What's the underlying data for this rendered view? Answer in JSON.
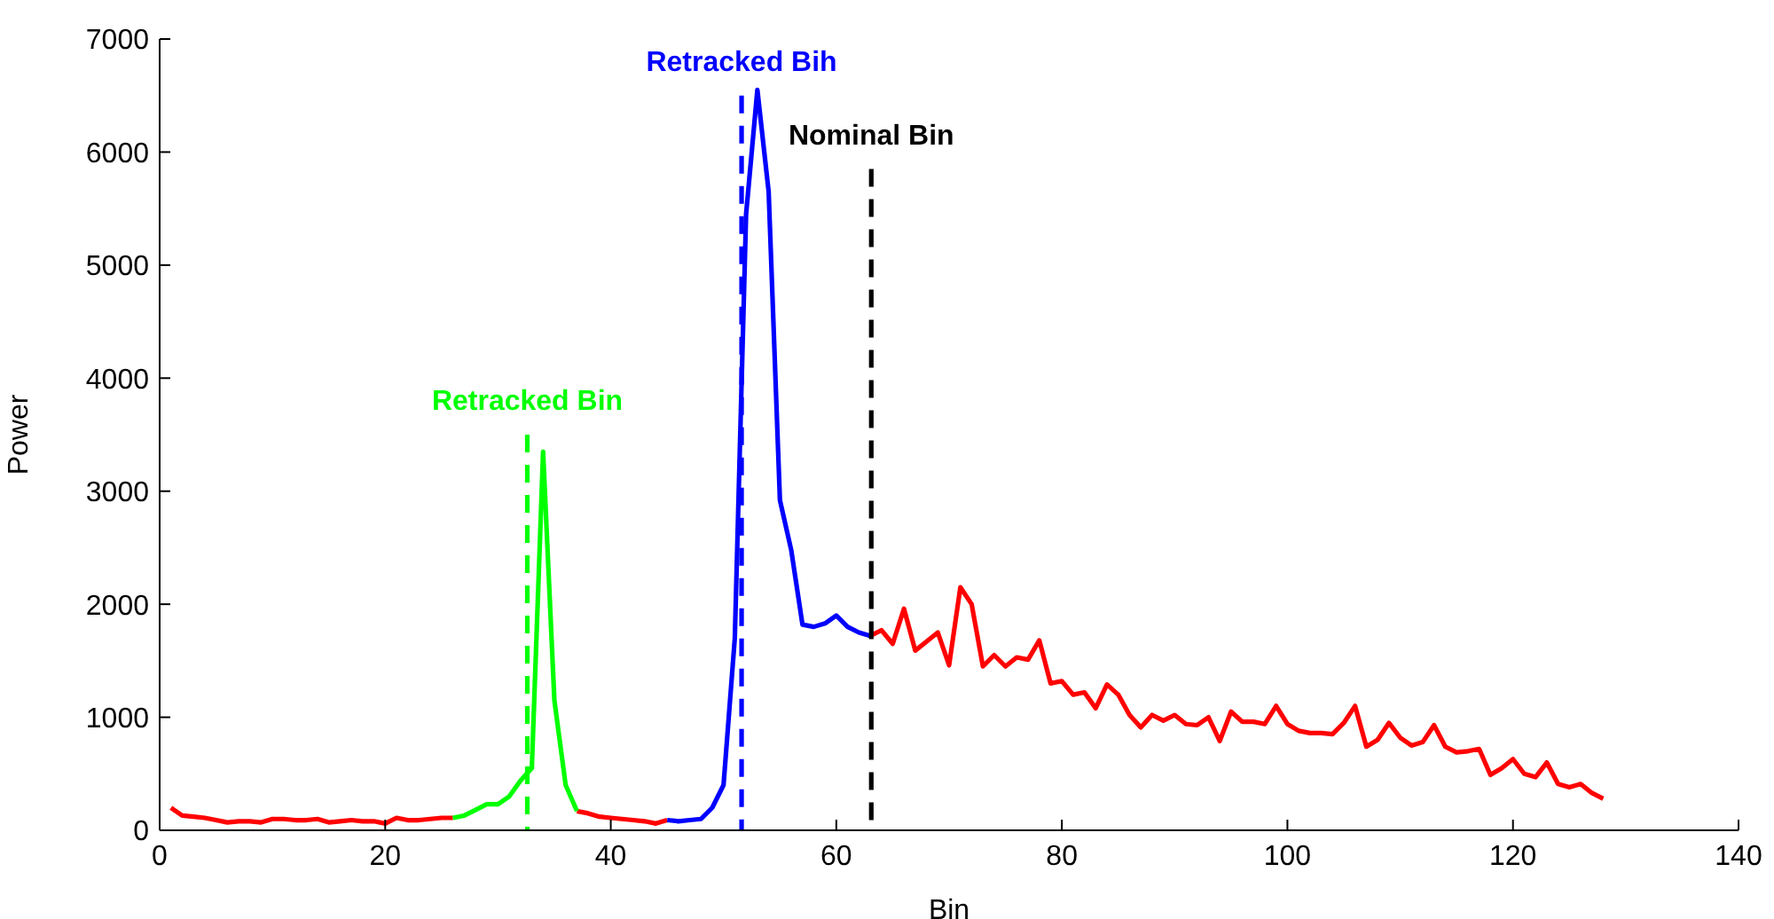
{
  "chart_data": {
    "type": "line",
    "xlabel": "Bin",
    "ylabel": "Power",
    "xlim": [
      0,
      140
    ],
    "xticks": [
      0,
      20,
      40,
      60,
      80,
      100,
      120,
      140
    ],
    "ylim": [
      0,
      7000
    ],
    "yticks": [
      0,
      1000,
      2000,
      3000,
      4000,
      5000,
      6000,
      7000
    ],
    "marker": "none",
    "annotations": [
      "Retracked  Bin",
      "Retracked  Bih",
      "Nominal  Bin"
    ],
    "series": [
      {
        "color": "#ff0000",
        "line_style": "solid",
        "x": [
          1,
          2,
          3,
          4,
          5,
          6,
          7,
          8,
          9,
          10,
          11,
          12,
          13,
          14,
          15,
          16,
          17,
          18,
          19,
          20,
          21,
          22,
          23,
          24,
          25,
          26,
          27,
          28,
          29,
          30,
          31,
          32,
          33,
          34,
          35,
          36,
          37,
          38,
          39,
          40,
          41,
          42,
          43,
          44,
          45,
          46,
          47,
          48,
          49,
          50,
          51,
          52,
          53,
          54,
          55,
          56,
          57,
          58,
          59,
          60,
          61,
          62,
          63,
          64,
          65,
          66,
          67,
          68,
          69,
          70,
          71,
          72,
          73,
          74,
          75,
          76,
          77,
          78,
          79,
          80,
          81,
          82,
          83,
          84,
          85,
          86,
          87,
          88,
          89,
          90,
          91,
          92,
          93,
          94,
          95,
          96,
          97,
          98,
          99,
          100,
          101,
          102,
          103,
          104,
          105,
          106,
          107,
          108,
          109,
          110,
          111,
          112,
          113,
          114,
          115,
          116,
          117,
          118,
          119,
          120,
          121,
          122,
          123,
          124,
          125,
          126,
          127,
          128
        ],
        "values": [
          200,
          130,
          120,
          110,
          90,
          70,
          80,
          80,
          70,
          100,
          100,
          90,
          90,
          100,
          70,
          80,
          90,
          80,
          80,
          60,
          110,
          90,
          90,
          100,
          110,
          110,
          null,
          null,
          null,
          null,
          null,
          null,
          null,
          null,
          null,
          null,
          170,
          150,
          120,
          110,
          100,
          90,
          80,
          60,
          90,
          null,
          null,
          null,
          null,
          null,
          null,
          null,
          null,
          null,
          null,
          null,
          null,
          null,
          null,
          null,
          null,
          null,
          1720,
          1770,
          1650,
          1960,
          1590,
          1670,
          1750,
          1460,
          2150,
          2000,
          1450,
          1550,
          1450,
          1530,
          1510,
          1680,
          1300,
          1320,
          1200,
          1220,
          1080,
          1290,
          1200,
          1020,
          910,
          1020,
          970,
          1020,
          940,
          930,
          1000,
          790,
          1050,
          960,
          960,
          940,
          1100,
          940,
          880,
          860,
          860,
          850,
          950,
          1100,
          740,
          800,
          950,
          820,
          750,
          780,
          930,
          740,
          690,
          700,
          720,
          490,
          550,
          630,
          500,
          470,
          600,
          410,
          380,
          410,
          330,
          280
        ]
      },
      {
        "color": "#00ff00",
        "line_style": "solid",
        "x": [
          26,
          27,
          28,
          29,
          30,
          31,
          32,
          33,
          34,
          35,
          36,
          37
        ],
        "values": [
          110,
          130,
          180,
          230,
          230,
          300,
          440,
          550,
          3350,
          1150,
          400,
          170
        ]
      },
      {
        "color": "#0000ff",
        "line_style": "solid",
        "x": [
          45,
          46,
          47,
          48,
          49,
          50,
          51,
          52,
          53,
          54,
          55,
          56,
          57,
          58,
          59,
          60,
          61,
          62,
          63
        ],
        "values": [
          90,
          80,
          90,
          100,
          200,
          400,
          1700,
          5450,
          6550,
          5650,
          2920,
          2480,
          1820,
          1800,
          1830,
          1900,
          1800,
          1750,
          1720
        ]
      },
      {
        "color": "#00ff00",
        "line_style": "dashed",
        "x": [
          32.6,
          32.6
        ],
        "values": [
          3500,
          0
        ]
      },
      {
        "color": "#0000ff",
        "line_style": "dashed",
        "x": [
          51.6,
          51.6
        ],
        "values": [
          6500,
          0
        ]
      },
      {
        "color": "#000000",
        "line_style": "dashed",
        "x": [
          63.1,
          63.1
        ],
        "values": [
          5850,
          0
        ]
      }
    ]
  }
}
